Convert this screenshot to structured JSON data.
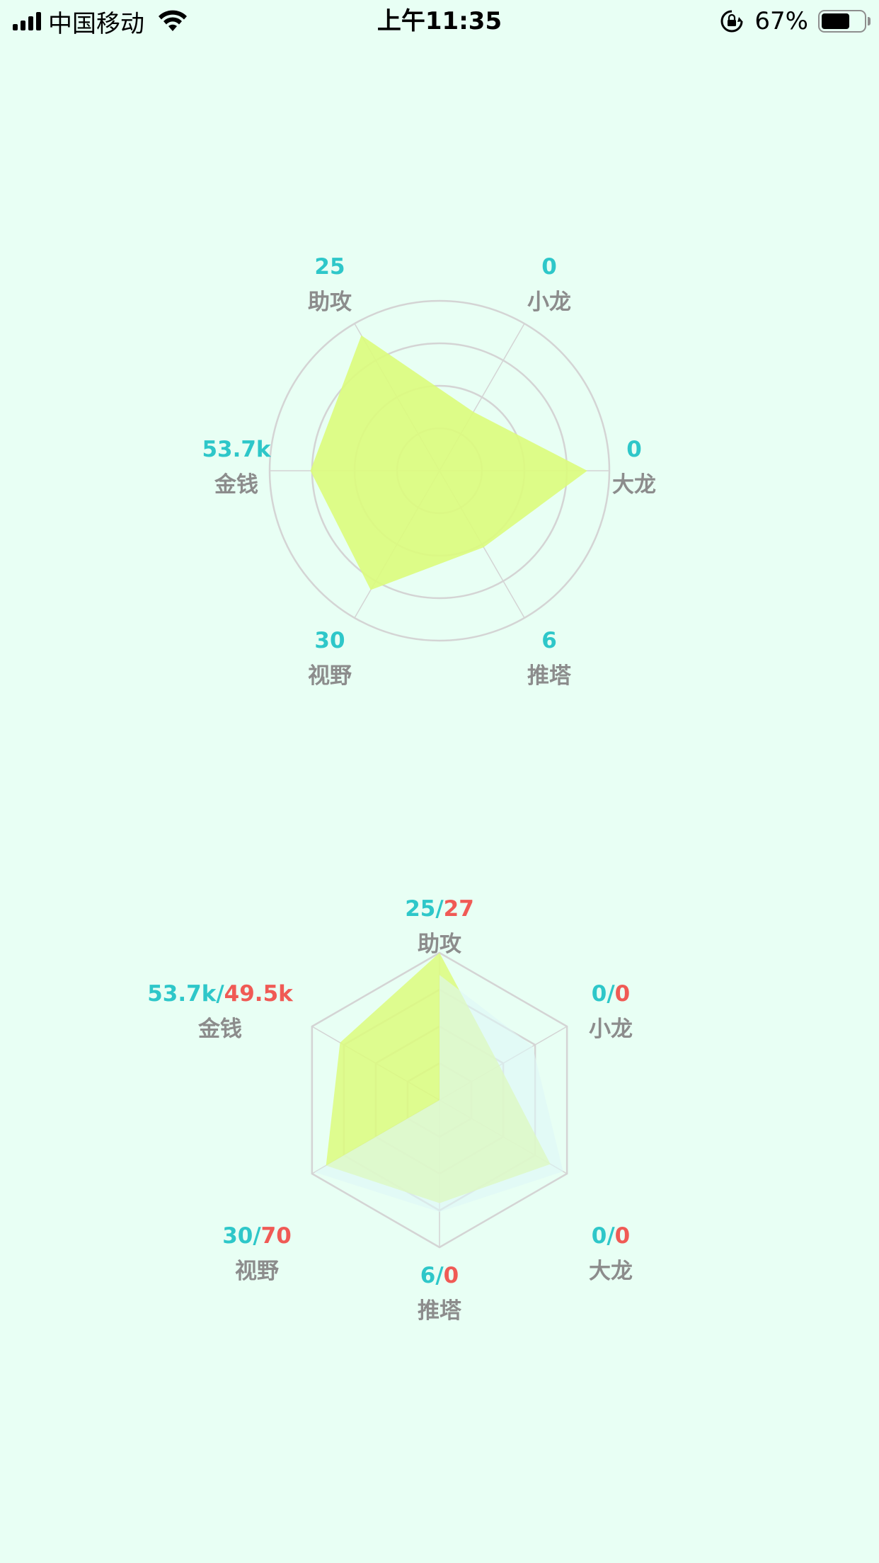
{
  "status_bar": {
    "carrier": "中国移动",
    "time": "上午11:35",
    "battery_percent": "67%",
    "battery_level": 0.67,
    "icons": [
      "signal-icon",
      "wifi-icon",
      "rotation-lock-icon",
      "battery-icon"
    ]
  },
  "colors": {
    "background": "#E8FFF4",
    "series_a": "#2EC7C9",
    "series_b": "#F05A55",
    "area_a": "#DCFC7C",
    "area_b": "#DDF7F7",
    "label": "#8C8C8C",
    "grid": "#D4D4D4"
  },
  "chart_data": [
    {
      "type": "radar",
      "shape": "circle",
      "indicators": [
        "助攻",
        "小龙",
        "大龙",
        "推塔",
        "视野",
        "金钱"
      ],
      "value_labels": [
        "25",
        "0",
        "0",
        "6",
        "30",
        "53.7k"
      ],
      "series": [
        {
          "values": [
            0.92,
            0.4,
            0.87,
            0.52,
            0.81,
            0.76
          ]
        }
      ],
      "grid": true
    },
    {
      "type": "radar",
      "shape": "polygon",
      "indicators": [
        "助攻",
        "小龙",
        "大龙",
        "推塔",
        "视野",
        "金钱"
      ],
      "value_labels": [
        [
          "25",
          "27"
        ],
        [
          "0",
          "0"
        ],
        [
          "0",
          "0"
        ],
        [
          "6",
          "0"
        ],
        [
          "30",
          "70"
        ],
        [
          "53.7k",
          "49.5k"
        ]
      ],
      "series": [
        {
          "values": [
            1.0,
            0.47,
            0.87,
            0.7,
            0.89,
            0.78
          ]
        },
        {
          "values": [
            0.85,
            0.73,
            0.97,
            0.76,
            0.98,
            0.0
          ]
        }
      ],
      "grid": true
    }
  ]
}
